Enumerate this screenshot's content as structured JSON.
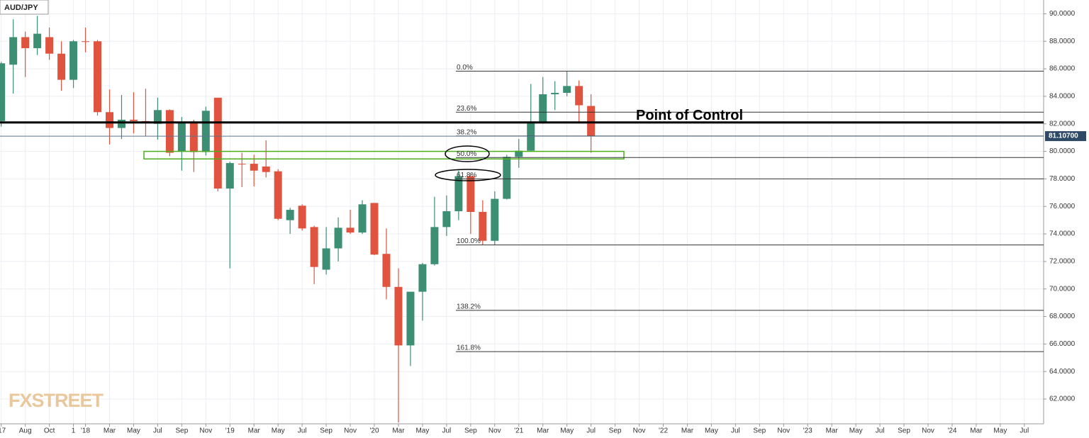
{
  "chart_data": {
    "type": "candlestick",
    "title": "AUD/JPY",
    "watermark": "FXSTREET",
    "x": [
      0,
      1,
      2,
      3,
      4,
      5,
      6,
      7,
      8,
      9,
      10,
      11,
      12,
      13,
      14,
      15,
      16,
      17,
      18,
      19,
      20,
      21,
      22,
      23,
      24,
      25,
      26,
      27,
      28,
      29,
      30,
      31,
      32,
      33,
      34,
      35,
      36,
      37,
      38,
      39,
      40,
      41,
      42,
      43,
      44,
      45,
      46,
      47,
      48,
      49
    ],
    "open": [
      82.2,
      86.3,
      88.3,
      87.5,
      88.3,
      87.1,
      85.2,
      88.0,
      88.0,
      82.85,
      81.7,
      82.3,
      82.2,
      82.0,
      83.0,
      80.0,
      82.1,
      79.95,
      83.9,
      77.3,
      79.1,
      79.1,
      78.9,
      78.55,
      75.0,
      76.05,
      74.5,
      71.4,
      72.95,
      74.45,
      74.1,
      76.25,
      72.55,
      70.15,
      65.9,
      69.8,
      71.8,
      74.5,
      75.65,
      78.2,
      75.6,
      73.5,
      76.55,
      79.6,
      80.05,
      82.05,
      84.15,
      84.25,
      84.75,
      83.3
    ],
    "high": [
      86.5,
      89.6,
      88.7,
      89.85,
      89.0,
      88.0,
      88.1,
      89.0,
      88.1,
      84.5,
      84.1,
      84.3,
      84.55,
      83.9,
      83.05,
      82.5,
      82.3,
      83.25,
      83.9,
      79.25,
      79.9,
      79.75,
      80.8,
      78.7,
      75.9,
      76.15,
      74.6,
      74.5,
      75.2,
      75.75,
      76.45,
      76.25,
      74.4,
      71.5,
      69.8,
      71.9,
      76.7,
      76.8,
      78.6,
      78.4,
      76.45,
      77.1,
      79.75,
      80.9,
      84.9,
      85.4,
      85.1,
      85.8,
      85.15,
      84.15
    ],
    "low": [
      81.8,
      84.2,
      85.4,
      87.0,
      86.65,
      84.4,
      84.6,
      87.2,
      82.6,
      80.5,
      80.9,
      81.3,
      81.1,
      80.85,
      79.65,
      78.6,
      78.5,
      79.7,
      77.1,
      71.5,
      77.4,
      77.45,
      78.1,
      75.0,
      74.0,
      74.25,
      70.35,
      71.05,
      72.0,
      74.0,
      74.0,
      72.45,
      69.25,
      60.3,
      64.4,
      67.7,
      71.7,
      73.85,
      75.0,
      74.0,
      73.2,
      73.2,
      76.5,
      78.8,
      80.0,
      82.0,
      83.0,
      84.0,
      82.1,
      79.9
    ],
    "close": [
      86.4,
      88.3,
      87.5,
      88.55,
      87.1,
      85.2,
      88.0,
      87.95,
      82.85,
      81.7,
      82.3,
      82.2,
      82.1,
      83.0,
      79.9,
      82.1,
      79.95,
      82.95,
      77.3,
      79.15,
      79.05,
      78.6,
      78.5,
      75.1,
      75.75,
      74.4,
      71.6,
      72.95,
      74.45,
      74.1,
      76.15,
      72.5,
      70.15,
      65.9,
      69.8,
      71.8,
      74.5,
      75.65,
      78.2,
      75.6,
      73.5,
      76.55,
      79.6,
      80.05,
      82.05,
      84.15,
      84.25,
      84.75,
      83.35,
      81.1
    ],
    "up_color": "#3d8f74",
    "down_color": "#e0533e",
    "xlim": [
      -0.1,
      86.6
    ],
    "ylim": [
      60.2,
      91.0
    ],
    "grid": true,
    "xticks": [
      {
        "value": 0,
        "label": "'17"
      },
      {
        "value": 2,
        "label": "Aug"
      },
      {
        "value": 4,
        "label": "Oct"
      },
      {
        "value": 6,
        "label": "1"
      },
      {
        "value": 7,
        "label": "'18"
      },
      {
        "value": 9,
        "label": "Mar"
      },
      {
        "value": 11,
        "label": "May"
      },
      {
        "value": 13,
        "label": "Jul"
      },
      {
        "value": 15,
        "label": "Sep"
      },
      {
        "value": 17,
        "label": "Nov"
      },
      {
        "value": 19,
        "label": "'19"
      },
      {
        "value": 21,
        "label": "Mar"
      },
      {
        "value": 23,
        "label": "May"
      },
      {
        "value": 25,
        "label": "Jul"
      },
      {
        "value": 27,
        "label": "Sep"
      },
      {
        "value": 29,
        "label": "Nov"
      },
      {
        "value": 31,
        "label": "'20"
      },
      {
        "value": 33,
        "label": "Mar"
      },
      {
        "value": 35,
        "label": "May"
      },
      {
        "value": 37,
        "label": "Jul"
      },
      {
        "value": 39,
        "label": "Sep"
      },
      {
        "value": 41,
        "label": "Nov"
      },
      {
        "value": 43,
        "label": "'21"
      },
      {
        "value": 45,
        "label": "Mar"
      },
      {
        "value": 47,
        "label": "May"
      },
      {
        "value": 49,
        "label": "Jul"
      },
      {
        "value": 51,
        "label": "Sep"
      },
      {
        "value": 53,
        "label": "Nov"
      },
      {
        "value": 55,
        "label": "'22"
      },
      {
        "value": 57,
        "label": "Mar"
      },
      {
        "value": 59,
        "label": "May"
      },
      {
        "value": 61,
        "label": "Jul"
      },
      {
        "value": 63,
        "label": "Sep"
      },
      {
        "value": 65,
        "label": "Nov"
      },
      {
        "value": 67,
        "label": "'23"
      },
      {
        "value": 69,
        "label": "Mar"
      },
      {
        "value": 71,
        "label": "May"
      },
      {
        "value": 73,
        "label": "Jul"
      },
      {
        "value": 75,
        "label": "Sep"
      },
      {
        "value": 77,
        "label": "Nov"
      },
      {
        "value": 79,
        "label": "'24"
      },
      {
        "value": 81,
        "label": "Mar"
      },
      {
        "value": 83,
        "label": "May"
      },
      {
        "value": 85,
        "label": "Jul"
      }
    ],
    "yticks": [
      {
        "value": 62,
        "label": "62.0000"
      },
      {
        "value": 64,
        "label": "64.0000"
      },
      {
        "value": 66,
        "label": "66.0000"
      },
      {
        "value": 68,
        "label": "68.0000"
      },
      {
        "value": 70,
        "label": "70.0000"
      },
      {
        "value": 72,
        "label": "72.0000"
      },
      {
        "value": 74,
        "label": "74.0000"
      },
      {
        "value": 76,
        "label": "76.0000"
      },
      {
        "value": 78,
        "label": "78.0000"
      },
      {
        "value": 80,
        "label": "80.0000"
      },
      {
        "value": 82,
        "label": "82.0000"
      },
      {
        "value": 84,
        "label": "84.0000"
      },
      {
        "value": 86,
        "label": "86.0000"
      },
      {
        "value": 88,
        "label": "88.0000"
      },
      {
        "value": 90,
        "label": "90.0000"
      }
    ],
    "fib_levels": [
      {
        "label": "0.0%",
        "value": 85.83
      },
      {
        "label": "23.6%",
        "value": 82.85
      },
      {
        "label": "38.2%",
        "value": 81.12
      },
      {
        "label": "50.0%",
        "value": 79.55
      },
      {
        "label": "61.8%",
        "value": 78.0
      },
      {
        "label": "100.0%",
        "value": 73.2
      },
      {
        "label": "138.2%",
        "value": 68.45
      },
      {
        "label": "161.8%",
        "value": 65.45
      }
    ],
    "point_of_control": {
      "label": "Point of Control",
      "value": 82.1
    },
    "last_price": {
      "value": 81.107,
      "label": "81.10700"
    },
    "zone": {
      "low": 79.45,
      "high": 80.0
    }
  }
}
